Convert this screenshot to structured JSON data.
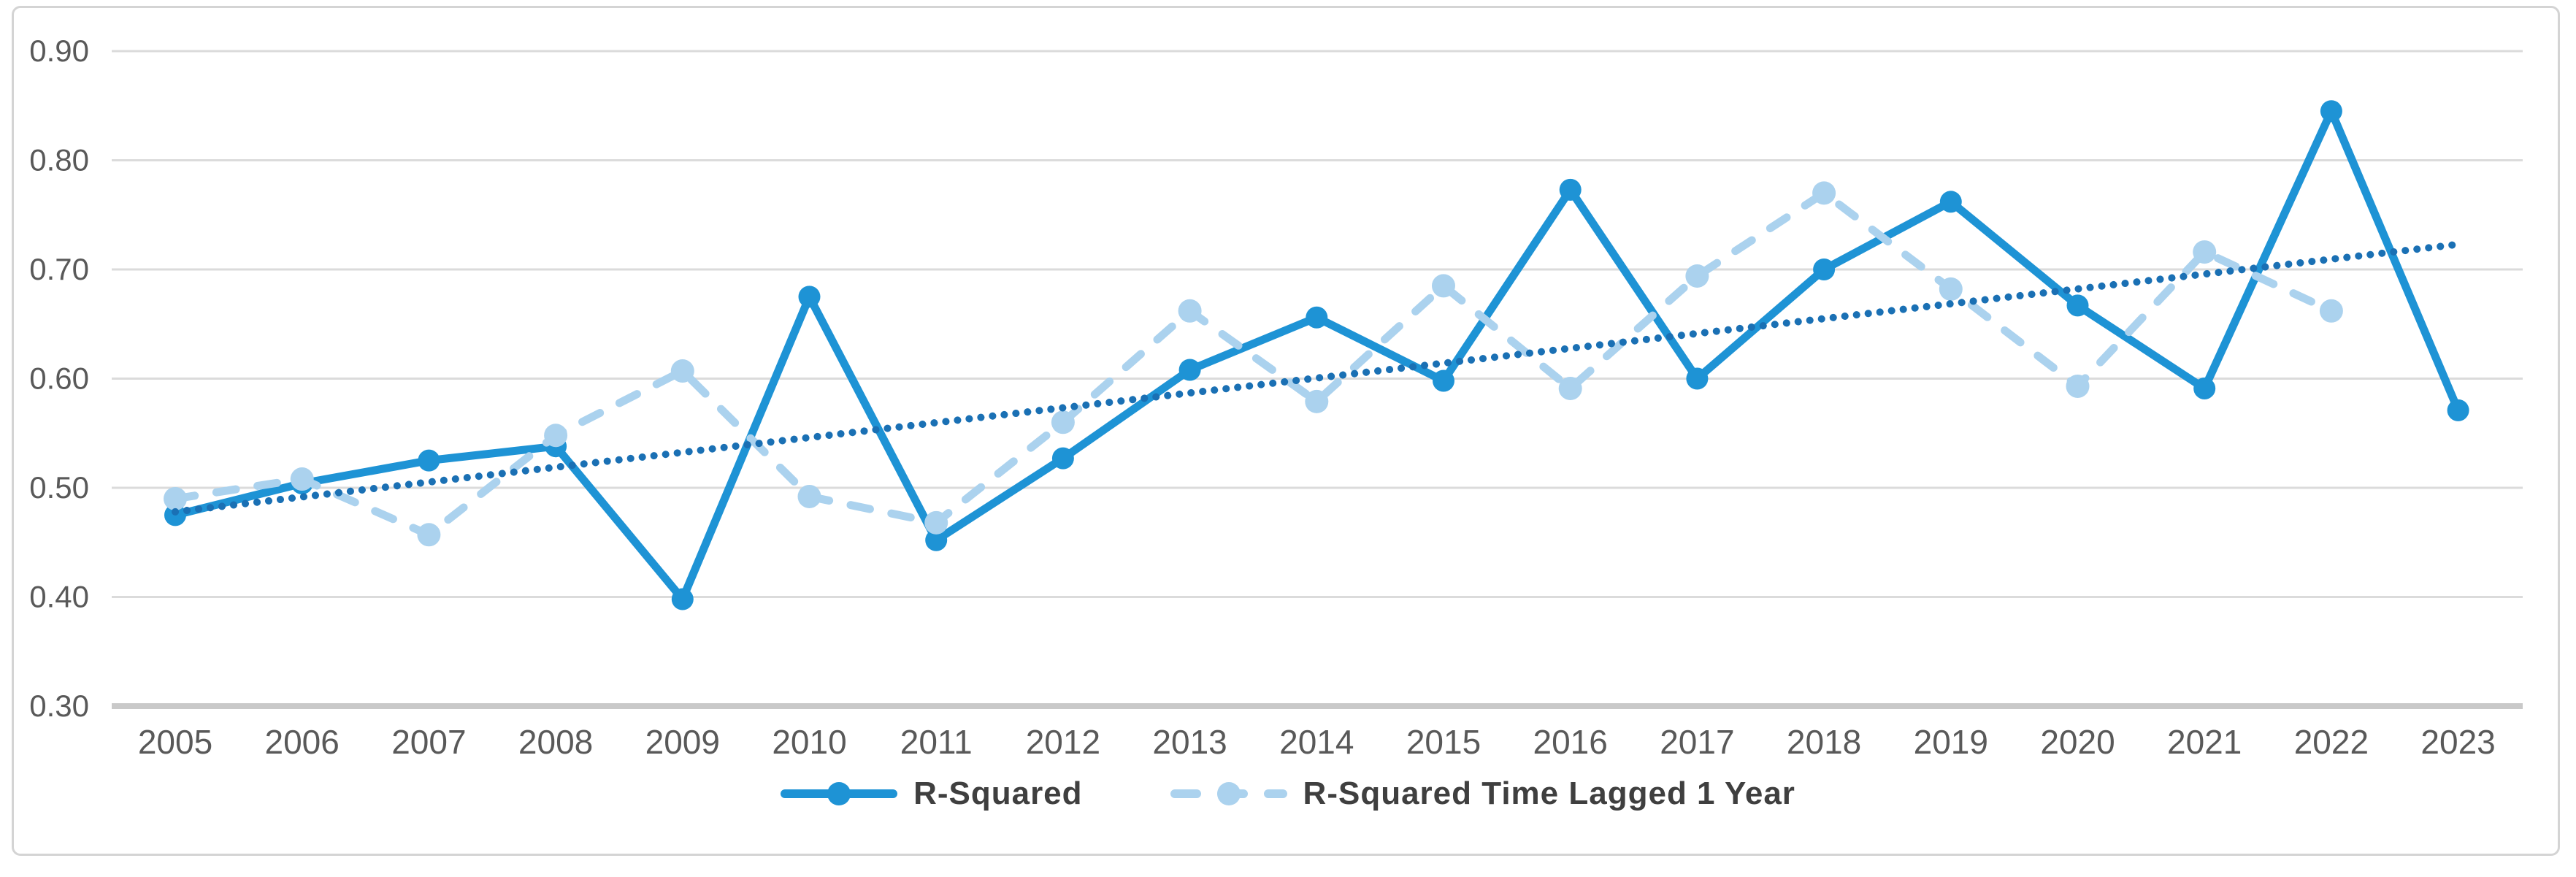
{
  "chart_data": {
    "type": "line",
    "title": "",
    "categories": [
      "2005",
      "2006",
      "2007",
      "2008",
      "2009",
      "2010",
      "2011",
      "2012",
      "2013",
      "2014",
      "2015",
      "2016",
      "2017",
      "2018",
      "2019",
      "2020",
      "2021",
      "2022",
      "2023"
    ],
    "series": [
      {
        "name": "R-Squared",
        "style": "solid",
        "color": "#1e93d5",
        "values": [
          0.475,
          0.504,
          0.525,
          0.538,
          0.398,
          0.675,
          0.452,
          0.527,
          0.608,
          0.656,
          0.598,
          0.773,
          0.6,
          0.7,
          0.762,
          0.667,
          0.591,
          0.845,
          0.571
        ]
      },
      {
        "name": "R-Squared Time Lagged 1 Year",
        "style": "dashed",
        "color": "#abd2ee",
        "values": [
          0.49,
          0.508,
          0.457,
          0.548,
          0.607,
          0.492,
          0.468,
          0.56,
          0.662,
          0.579,
          0.685,
          0.591,
          0.694,
          0.77,
          0.682,
          0.593,
          0.716,
          0.662,
          null
        ]
      }
    ],
    "trendline": {
      "of_series": "R-Squared",
      "style": "dotted",
      "color": "#1a70b4",
      "start_value": 0.478,
      "end_value": 0.723
    },
    "xlabel": "",
    "ylabel": "",
    "ylim": [
      0.3,
      0.9
    ],
    "ytick_labels": [
      "0.90",
      "0.80",
      "0.70",
      "0.60",
      "0.50",
      "0.40",
      "0.30"
    ],
    "grid": true,
    "legend_position": "bottom",
    "colors": {
      "gridline": "#dbdbdb",
      "axis_line": "#c9c9c9",
      "tick_text": "#595959",
      "frame_border": "#d4d4d4",
      "background": "#ffffff"
    }
  },
  "legend": {
    "items": [
      {
        "label": "R-Squared"
      },
      {
        "label": "R-Squared Time Lagged 1 Year"
      }
    ]
  }
}
